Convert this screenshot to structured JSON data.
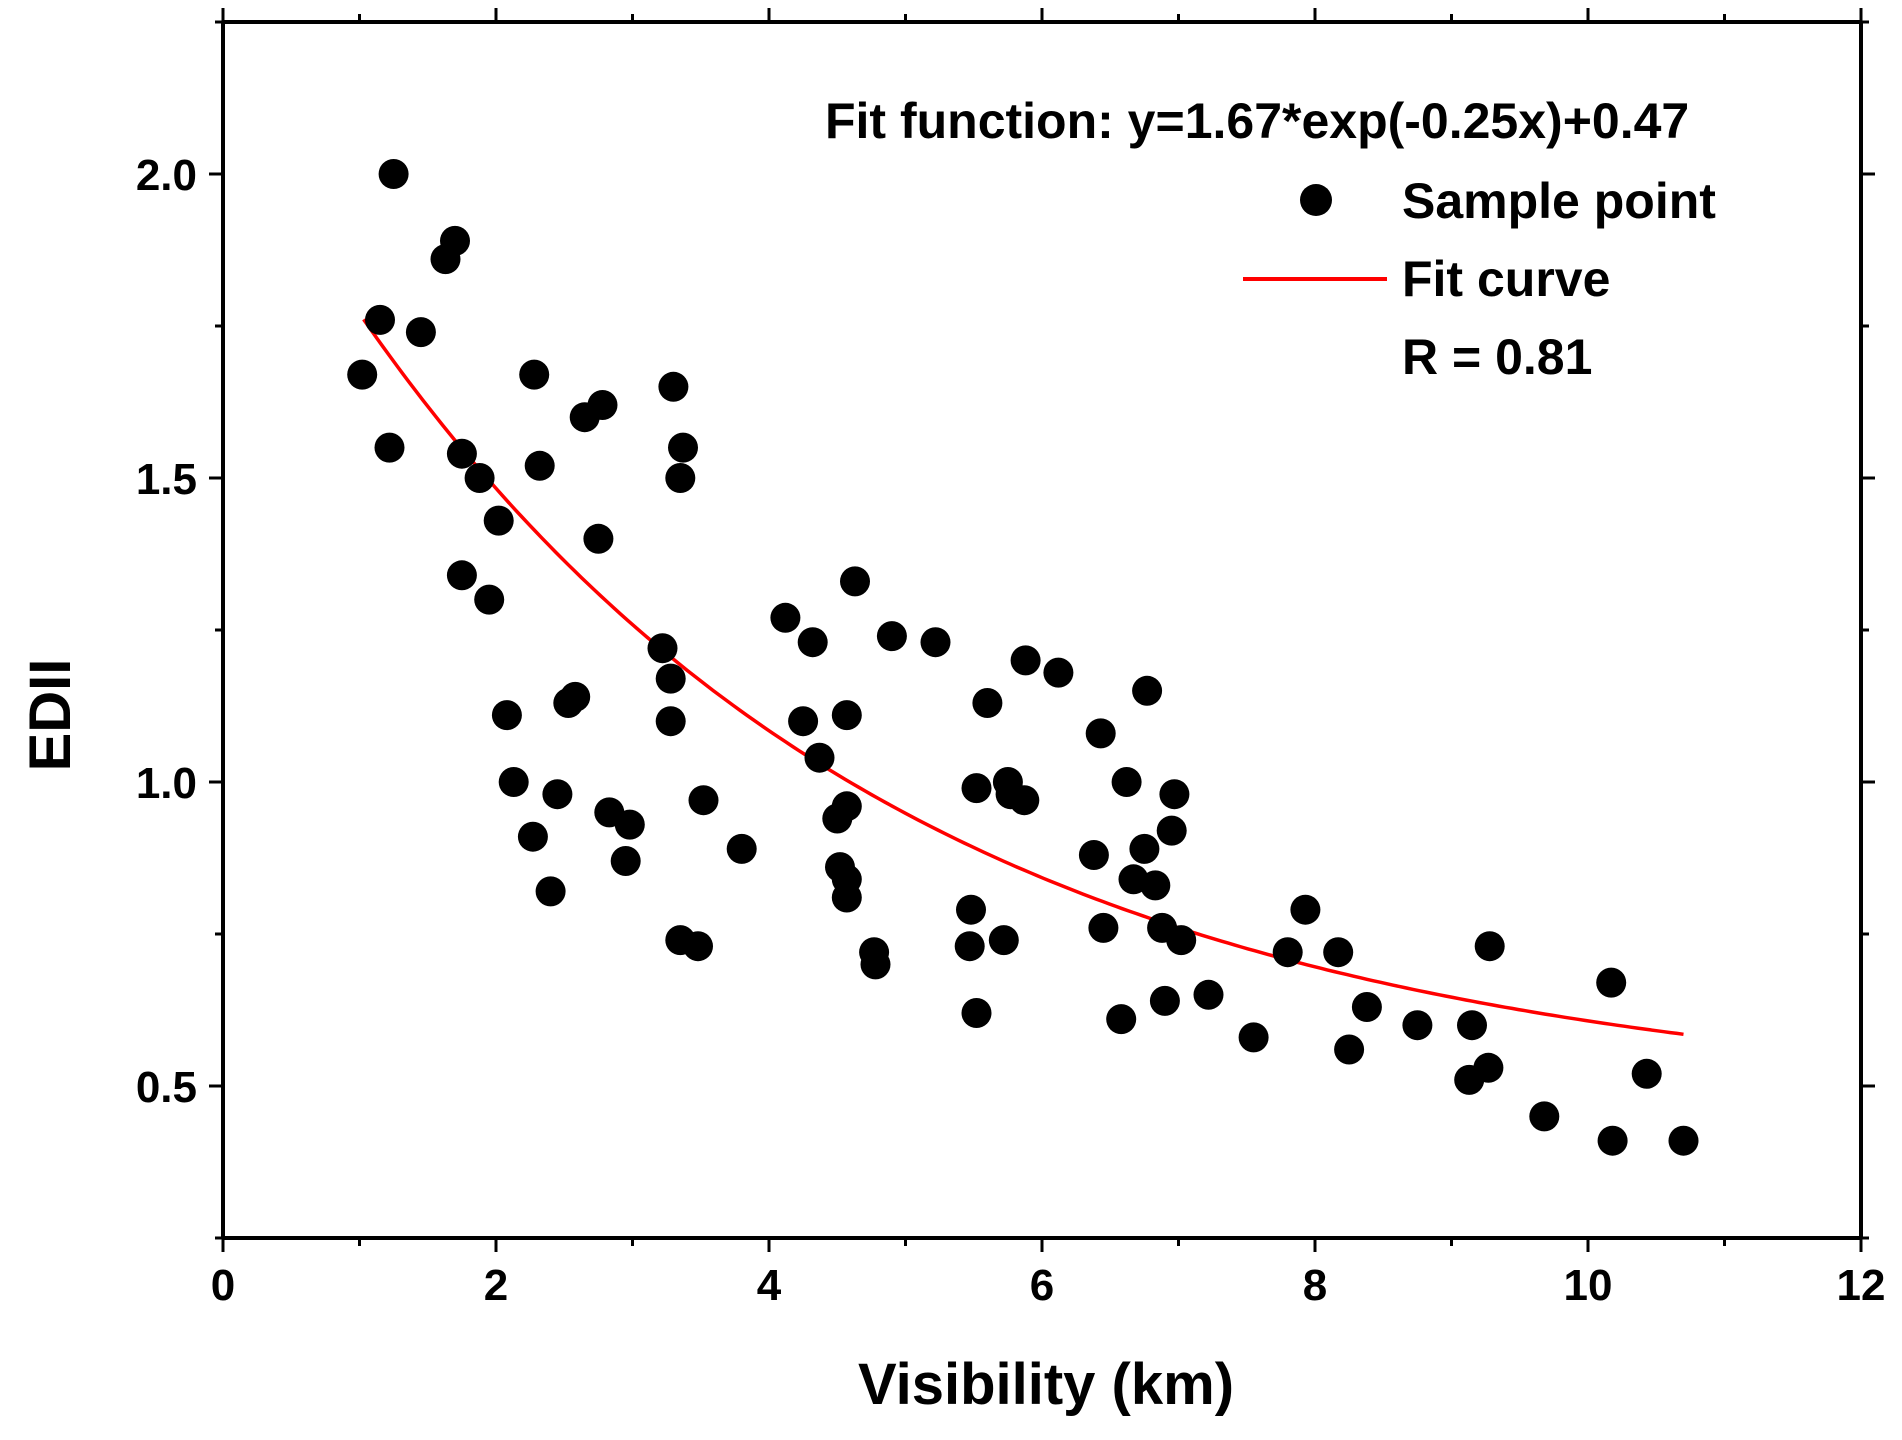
{
  "chart_data": {
    "type": "scatter",
    "xlabel": "Visibility (km)",
    "ylabel": "EDII",
    "xlim": [
      0,
      12
    ],
    "ylim": [
      0.25,
      2.25
    ],
    "x_ticks": [
      0,
      2,
      4,
      6,
      8,
      10,
      12
    ],
    "x_tick_labels": [
      "0",
      "2",
      "4",
      "6",
      "8",
      "10",
      "12"
    ],
    "y_ticks": [
      0.5,
      1.0,
      1.5,
      2.0
    ],
    "y_tick_labels": [
      "0.5",
      "1.0",
      "1.5",
      "2.0"
    ],
    "grid": false,
    "legend_position": "top-right",
    "annotation": "Fit function: y=1.67*exp(-0.25x)+0.47",
    "r_text": "R = 0.81",
    "colors": {
      "points": "#000000",
      "fit": "#ff0000",
      "axis": "#000000"
    },
    "series": [
      {
        "name": "Sample point",
        "kind": "scatter",
        "points": [
          [
            1.02,
            1.67
          ],
          [
            1.15,
            1.76
          ],
          [
            1.22,
            1.55
          ],
          [
            1.25,
            2.0
          ],
          [
            1.45,
            1.74
          ],
          [
            1.63,
            1.86
          ],
          [
            1.7,
            1.89
          ],
          [
            1.75,
            1.54
          ],
          [
            1.75,
            1.34
          ],
          [
            1.88,
            1.5
          ],
          [
            1.95,
            1.3
          ],
          [
            2.02,
            1.43
          ],
          [
            2.08,
            1.11
          ],
          [
            2.13,
            1.0
          ],
          [
            2.27,
            0.91
          ],
          [
            2.28,
            1.67
          ],
          [
            2.32,
            1.52
          ],
          [
            2.4,
            0.82
          ],
          [
            2.45,
            0.98
          ],
          [
            2.53,
            1.13
          ],
          [
            2.58,
            1.14
          ],
          [
            2.65,
            1.6
          ],
          [
            2.75,
            1.4
          ],
          [
            2.78,
            1.62
          ],
          [
            2.83,
            0.95
          ],
          [
            2.95,
            0.87
          ],
          [
            2.98,
            0.93
          ],
          [
            3.22,
            1.22
          ],
          [
            3.28,
            1.17
          ],
          [
            3.28,
            1.1
          ],
          [
            3.3,
            1.65
          ],
          [
            3.35,
            0.74
          ],
          [
            3.35,
            1.5
          ],
          [
            3.37,
            1.55
          ],
          [
            3.48,
            0.73
          ],
          [
            3.52,
            0.97
          ],
          [
            3.8,
            0.89
          ],
          [
            4.12,
            1.27
          ],
          [
            4.25,
            1.1
          ],
          [
            4.32,
            1.23
          ],
          [
            4.37,
            1.04
          ],
          [
            4.5,
            0.94
          ],
          [
            4.52,
            0.86
          ],
          [
            4.57,
            0.96
          ],
          [
            4.57,
            0.84
          ],
          [
            4.57,
            1.11
          ],
          [
            4.57,
            0.81
          ],
          [
            4.63,
            1.33
          ],
          [
            4.77,
            0.72
          ],
          [
            4.78,
            0.7
          ],
          [
            4.9,
            1.24
          ],
          [
            5.22,
            1.23
          ],
          [
            5.47,
            0.73
          ],
          [
            5.48,
            0.79
          ],
          [
            5.52,
            0.62
          ],
          [
            5.52,
            0.99
          ],
          [
            5.6,
            1.13
          ],
          [
            5.72,
            0.74
          ],
          [
            5.75,
            1.0
          ],
          [
            5.77,
            0.98
          ],
          [
            5.87,
            0.97
          ],
          [
            5.88,
            1.2
          ],
          [
            6.12,
            1.18
          ],
          [
            6.38,
            0.88
          ],
          [
            6.43,
            1.08
          ],
          [
            6.45,
            0.76
          ],
          [
            6.58,
            0.61
          ],
          [
            6.62,
            1.0
          ],
          [
            6.67,
            0.84
          ],
          [
            6.75,
            0.89
          ],
          [
            6.77,
            1.15
          ],
          [
            6.83,
            0.83
          ],
          [
            6.88,
            0.76
          ],
          [
            6.9,
            0.64
          ],
          [
            6.95,
            0.92
          ],
          [
            6.97,
            0.98
          ],
          [
            7.02,
            0.74
          ],
          [
            7.22,
            0.65
          ],
          [
            7.55,
            0.58
          ],
          [
            7.8,
            0.72
          ],
          [
            7.93,
            0.79
          ],
          [
            8.17,
            0.72
          ],
          [
            8.25,
            0.56
          ],
          [
            8.38,
            0.63
          ],
          [
            8.75,
            0.6
          ],
          [
            9.13,
            0.51
          ],
          [
            9.15,
            0.6
          ],
          [
            9.27,
            0.53
          ],
          [
            9.28,
            0.73
          ],
          [
            9.68,
            0.45
          ],
          [
            10.17,
            0.67
          ],
          [
            10.18,
            0.41
          ],
          [
            10.43,
            0.52
          ],
          [
            10.7,
            0.41
          ]
        ]
      },
      {
        "name": "Fit curve",
        "kind": "line",
        "function": {
          "a": 1.67,
          "b": -0.25,
          "c": 0.47
        },
        "x_range": [
          1.03,
          10.7
        ]
      }
    ]
  }
}
